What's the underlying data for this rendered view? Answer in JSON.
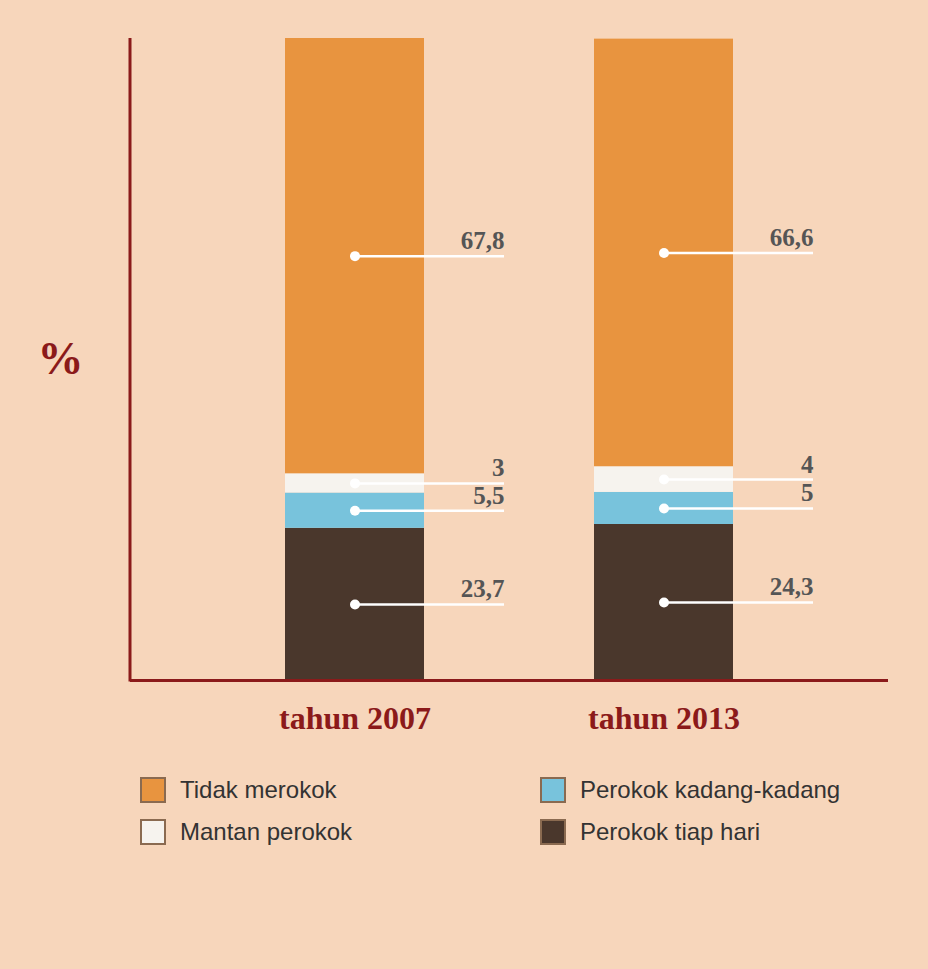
{
  "chart_data": {
    "type": "bar",
    "stacked": true,
    "y_label": "%",
    "categories": [
      "tahun 2007",
      "tahun 2013"
    ],
    "ylim": [
      0,
      100
    ],
    "tick_labels": "x",
    "data_labels": true,
    "legend": "bottom",
    "series": [
      {
        "name": "Tidak merokok",
        "color": "#e8943f",
        "values": [
          67.8,
          66.6
        ],
        "value_labels": [
          "67,8",
          "66,6"
        ]
      },
      {
        "name": "Mantan perokok",
        "color": "#f6f3ee",
        "values": [
          3,
          4
        ],
        "value_labels": [
          "3",
          "4"
        ]
      },
      {
        "name": "Perokok kadang-kadang",
        "color": "#78c3dc",
        "values": [
          5.5,
          5
        ],
        "value_labels": [
          "5,5",
          "5"
        ]
      },
      {
        "name": "Perokok tiap hari",
        "color": "#4a372c",
        "values": [
          23.7,
          24.3
        ],
        "value_labels": [
          "23,7",
          "24,3"
        ]
      }
    ]
  }
}
